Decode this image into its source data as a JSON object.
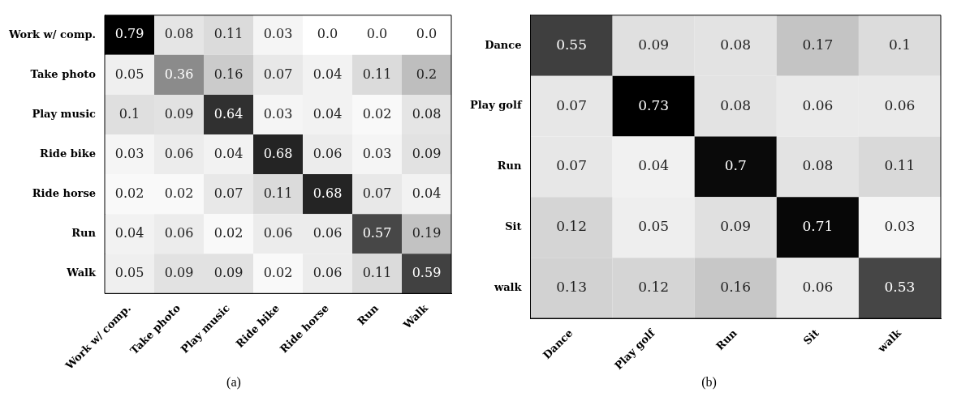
{
  "chart_data": [
    {
      "type": "heatmap",
      "categories": [
        "Work w/ comp.",
        "Take photo",
        "Play music",
        "Ride bike",
        "Ride horse",
        "Run",
        "Walk"
      ],
      "y_categories": [
        "Work w/ comp.",
        "Take photo",
        "Play music",
        "Ride bike",
        "Ride horse",
        "Run",
        "Walk"
      ],
      "cells": [
        [
          0.79,
          0.08,
          0.11,
          0.03,
          0.0,
          0.0,
          0.0
        ],
        [
          0.05,
          0.36,
          0.16,
          0.07,
          0.04,
          0.11,
          0.2
        ],
        [
          0.1,
          0.09,
          0.64,
          0.03,
          0.04,
          0.02,
          0.08
        ],
        [
          0.03,
          0.06,
          0.04,
          0.68,
          0.06,
          0.03,
          0.09
        ],
        [
          0.02,
          0.02,
          0.07,
          0.11,
          0.68,
          0.07,
          0.04
        ],
        [
          0.04,
          0.06,
          0.02,
          0.06,
          0.06,
          0.57,
          0.19
        ],
        [
          0.05,
          0.09,
          0.09,
          0.02,
          0.06,
          0.11,
          0.59
        ]
      ],
      "cell_labels": [
        [
          "0.79",
          "0.08",
          "0.11",
          "0.03",
          "0.0",
          "0.0",
          "0.0"
        ],
        [
          "0.05",
          "0.36",
          "0.16",
          "0.07",
          "0.04",
          "0.11",
          "0.2"
        ],
        [
          "0.1",
          "0.09",
          "0.64",
          "0.03",
          "0.04",
          "0.02",
          "0.08"
        ],
        [
          "0.03",
          "0.06",
          "0.04",
          "0.68",
          "0.06",
          "0.03",
          "0.09"
        ],
        [
          "0.02",
          "0.02",
          "0.07",
          "0.11",
          "0.68",
          "0.07",
          "0.04"
        ],
        [
          "0.04",
          "0.06",
          "0.02",
          "0.06",
          "0.06",
          "0.57",
          "0.19"
        ],
        [
          "0.05",
          "0.09",
          "0.09",
          "0.02",
          "0.06",
          "0.11",
          "0.59"
        ]
      ],
      "annotations": [
        "(a)"
      ]
    },
    {
      "type": "heatmap",
      "categories": [
        "Dance",
        "Play golf",
        "Run",
        "Sit",
        "walk"
      ],
      "y_categories": [
        "Dance",
        "Play golf",
        "Run",
        "Sit",
        "walk"
      ],
      "cells": [
        [
          0.55,
          0.09,
          0.08,
          0.17,
          0.1
        ],
        [
          0.07,
          0.73,
          0.08,
          0.06,
          0.06
        ],
        [
          0.07,
          0.04,
          0.7,
          0.08,
          0.11
        ],
        [
          0.12,
          0.05,
          0.09,
          0.71,
          0.03
        ],
        [
          0.13,
          0.12,
          0.16,
          0.06,
          0.53
        ]
      ],
      "cell_labels": [
        [
          "0.55",
          "0.09",
          "0.08",
          "0.17",
          "0.1"
        ],
        [
          "0.07",
          "0.73",
          "0.08",
          "0.06",
          "0.06"
        ],
        [
          "0.07",
          "0.04",
          "0.7",
          "0.08",
          "0.11"
        ],
        [
          "0.12",
          "0.05",
          "0.09",
          "0.71",
          "0.03"
        ],
        [
          "0.13",
          "0.12",
          "0.16",
          "0.06",
          "0.53"
        ]
      ],
      "annotations": [
        "(b)"
      ]
    }
  ]
}
